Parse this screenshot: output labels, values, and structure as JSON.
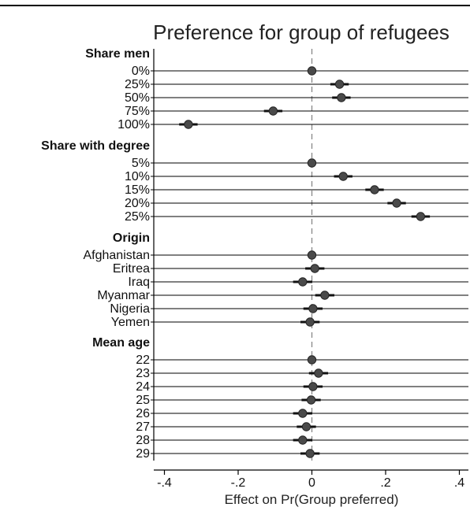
{
  "chart_data": {
    "type": "coefficient_plot",
    "title": "Preference for group of refugees",
    "xlabel": "Effect on Pr(Group preferred)",
    "xlim": [
      -0.42,
      0.42
    ],
    "x_ticks": [
      {
        "value": -0.4,
        "label": "-.4"
      },
      {
        "value": -0.2,
        "label": "-.2"
      },
      {
        "value": 0,
        "label": "0"
      },
      {
        "value": 0.2,
        "label": ".2"
      },
      {
        "value": 0.4,
        "label": ".4"
      }
    ],
    "reference_line": 0,
    "groups": [
      {
        "header": "Share men",
        "items": [
          {
            "label": "0%",
            "estimate": 0.0,
            "ci": [
              0.0,
              0.0
            ]
          },
          {
            "label": "25%",
            "estimate": 0.075,
            "ci": [
              0.05,
              0.1
            ]
          },
          {
            "label": "50%",
            "estimate": 0.08,
            "ci": [
              0.055,
              0.105
            ]
          },
          {
            "label": "75%",
            "estimate": -0.105,
            "ci": [
              -0.13,
              -0.08
            ]
          },
          {
            "label": "100%",
            "estimate": -0.335,
            "ci": [
              -0.36,
              -0.31
            ]
          }
        ]
      },
      {
        "header": "Share with degree",
        "items": [
          {
            "label": "5%",
            "estimate": 0.0,
            "ci": [
              0.0,
              0.0
            ]
          },
          {
            "label": "10%",
            "estimate": 0.085,
            "ci": [
              0.06,
              0.11
            ]
          },
          {
            "label": "15%",
            "estimate": 0.17,
            "ci": [
              0.145,
              0.195
            ]
          },
          {
            "label": "20%",
            "estimate": 0.23,
            "ci": [
              0.205,
              0.255
            ]
          },
          {
            "label": "25%",
            "estimate": 0.295,
            "ci": [
              0.27,
              0.32
            ]
          }
        ]
      },
      {
        "header": "Origin",
        "items": [
          {
            "label": "Afghanistan",
            "estimate": 0.0,
            "ci": [
              0.0,
              0.0
            ]
          },
          {
            "label": "Eritrea",
            "estimate": 0.008,
            "ci": [
              -0.018,
              0.034
            ]
          },
          {
            "label": "Iraq",
            "estimate": -0.025,
            "ci": [
              -0.051,
              0.001
            ]
          },
          {
            "label": "Myanmar",
            "estimate": 0.035,
            "ci": [
              0.009,
              0.061
            ]
          },
          {
            "label": "Nigeria",
            "estimate": 0.003,
            "ci": [
              -0.023,
              0.029
            ]
          },
          {
            "label": "Yemen",
            "estimate": -0.005,
            "ci": [
              -0.031,
              0.021
            ]
          }
        ]
      },
      {
        "header": "Mean age",
        "items": [
          {
            "label": "22",
            "estimate": 0.0,
            "ci": [
              0.0,
              0.0
            ]
          },
          {
            "label": "23",
            "estimate": 0.018,
            "ci": [
              -0.008,
              0.044
            ]
          },
          {
            "label": "24",
            "estimate": 0.003,
            "ci": [
              -0.023,
              0.029
            ]
          },
          {
            "label": "25",
            "estimate": -0.002,
            "ci": [
              -0.028,
              0.024
            ]
          },
          {
            "label": "26",
            "estimate": -0.025,
            "ci": [
              -0.051,
              0.001
            ]
          },
          {
            "label": "27",
            "estimate": -0.015,
            "ci": [
              -0.041,
              0.011
            ]
          },
          {
            "label": "28",
            "estimate": -0.025,
            "ci": [
              -0.051,
              0.001
            ]
          },
          {
            "label": "29",
            "estimate": -0.005,
            "ci": [
              -0.031,
              0.021
            ]
          }
        ]
      }
    ],
    "colors": {
      "marker": "#4a4a4a",
      "ci": "#111111",
      "row_line": "#000000",
      "zero_line": "#888888"
    }
  }
}
